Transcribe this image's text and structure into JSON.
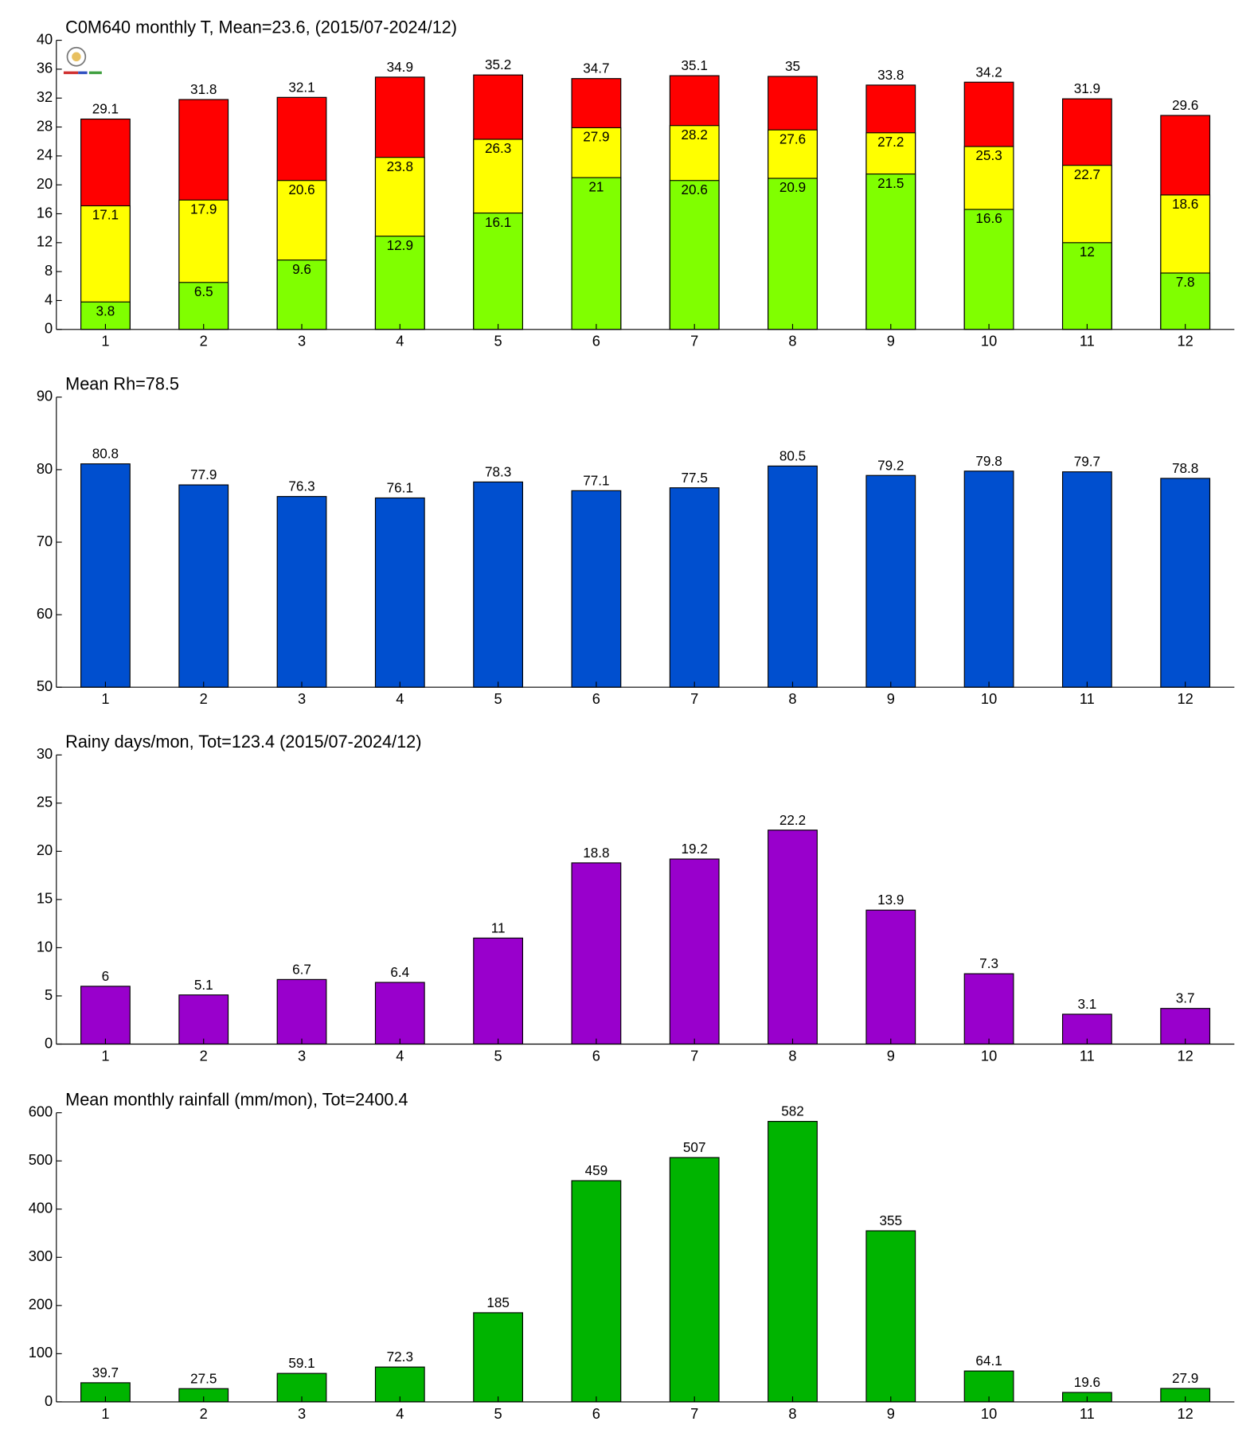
{
  "chart_data": [
    {
      "type": "overlap-bar",
      "title": "C0M640 monthly T, Mean=23.6, (2015/07-2024/12)",
      "categories": [
        1,
        2,
        3,
        4,
        5,
        6,
        7,
        8,
        9,
        10,
        11,
        12
      ],
      "series": [
        {
          "color": "#ff0000",
          "values": [
            29.1,
            31.8,
            32.1,
            34.9,
            35.2,
            34.7,
            35.1,
            35,
            33.8,
            34.2,
            31.9,
            29.6
          ]
        },
        {
          "color": "#ffff00",
          "values": [
            17.1,
            17.9,
            20.6,
            23.8,
            26.3,
            27.9,
            28.2,
            27.6,
            27.2,
            25.3,
            22.7,
            18.6
          ]
        },
        {
          "color": "#80ff00",
          "values": [
            3.8,
            6.5,
            9.6,
            12.9,
            16.1,
            21,
            20.6,
            20.9,
            21.5,
            16.6,
            12,
            7.8
          ]
        }
      ],
      "ylim": [
        0,
        40
      ],
      "yticks": [
        0,
        4,
        8,
        12,
        16,
        20,
        24,
        28,
        32,
        36,
        40
      ]
    },
    {
      "type": "bar",
      "title": "Mean Rh=78.5",
      "categories": [
        1,
        2,
        3,
        4,
        5,
        6,
        7,
        8,
        9,
        10,
        11,
        12
      ],
      "values": [
        80.8,
        77.9,
        76.3,
        76.1,
        78.3,
        77.1,
        77.5,
        80.5,
        79.2,
        79.8,
        79.7,
        78.8
      ],
      "color": "#004fcf",
      "ylim": [
        50,
        90
      ],
      "yticks": [
        50,
        60,
        70,
        80,
        90
      ]
    },
    {
      "type": "bar",
      "title": "Rainy days/mon, Tot=123.4 (2015/07-2024/12)",
      "categories": [
        1,
        2,
        3,
        4,
        5,
        6,
        7,
        8,
        9,
        10,
        11,
        12
      ],
      "values": [
        6,
        5.1,
        6.7,
        6.4,
        11,
        18.8,
        19.2,
        22.2,
        13.9,
        7.3,
        3.1,
        3.7
      ],
      "color": "#9900cc",
      "ylim": [
        0,
        30
      ],
      "yticks": [
        0,
        5,
        10,
        15,
        20,
        25,
        30
      ]
    },
    {
      "type": "bar",
      "title": "Mean monthly rainfall (mm/mon), Tot=2400.4",
      "categories": [
        1,
        2,
        3,
        4,
        5,
        6,
        7,
        8,
        9,
        10,
        11,
        12
      ],
      "values": [
        39.7,
        27.5,
        59.1,
        72.3,
        185,
        459,
        507,
        582,
        355,
        64.1,
        19.6,
        27.9
      ],
      "color": "#00b400",
      "ylim": [
        0,
        600
      ],
      "yticks": [
        0,
        100,
        200,
        300,
        400,
        500,
        600
      ]
    }
  ]
}
